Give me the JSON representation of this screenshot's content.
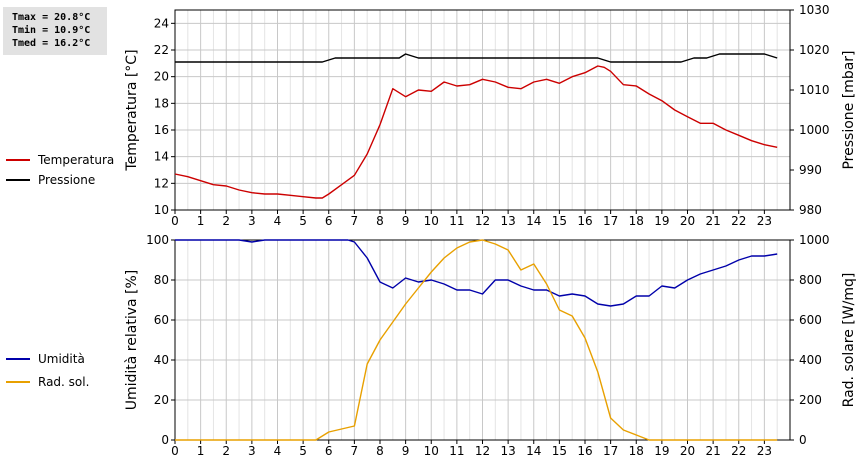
{
  "stats": {
    "tmax": "Tmax = 20.8°C",
    "tmin": "Tmin = 10.9°C",
    "tmed": "Tmed = 16.2°C"
  },
  "colors": {
    "temperature": "#cc0000",
    "pressure": "#000000",
    "humidity": "#0000aa",
    "radiation": "#e8a000",
    "grid": "#c8c8c8"
  },
  "chart_data": [
    {
      "type": "line",
      "xlim": [
        0,
        24
      ],
      "x_ticks": [
        "0",
        "1",
        "2",
        "3",
        "4",
        "5",
        "6",
        "7",
        "8",
        "9",
        "10",
        "11",
        "12",
        "13",
        "14",
        "15",
        "16",
        "17",
        "18",
        "19",
        "20",
        "21",
        "22",
        "23"
      ],
      "grid": true,
      "legend": "left",
      "left_axis": {
        "label": "Temperatura [°C]",
        "lim": [
          10,
          25
        ],
        "ticks": [
          "10",
          "12",
          "14",
          "16",
          "18",
          "20",
          "22",
          "24"
        ]
      },
      "right_axis": {
        "label": "Pressione [mbar]",
        "lim": [
          980,
          1030
        ],
        "ticks": [
          "980",
          "990",
          "1000",
          "1010",
          "1020",
          "1030"
        ]
      },
      "series": [
        {
          "name": "Temperatura",
          "axis": "left",
          "x": [
            0,
            0.5,
            1,
            1.5,
            2,
            2.5,
            3,
            3.5,
            4,
            4.5,
            5,
            5.5,
            5.75,
            6,
            6.5,
            7,
            7.5,
            8,
            8.5,
            9,
            9.5,
            10,
            10.5,
            11,
            11.5,
            12,
            12.5,
            13,
            13.5,
            14,
            14.5,
            15,
            15.5,
            16,
            16.5,
            16.75,
            17,
            17.5,
            18,
            18.5,
            19,
            19.5,
            20,
            20.5,
            21,
            21.5,
            22,
            22.5,
            23,
            23.5
          ],
          "values": [
            12.7,
            12.5,
            12.2,
            11.9,
            11.8,
            11.5,
            11.3,
            11.2,
            11.2,
            11.1,
            11.0,
            10.9,
            10.9,
            11.2,
            11.9,
            12.6,
            14.2,
            16.4,
            19.1,
            18.5,
            19.0,
            18.9,
            19.6,
            19.3,
            19.4,
            19.8,
            19.6,
            19.2,
            19.1,
            19.6,
            19.8,
            19.5,
            20.0,
            20.3,
            20.8,
            20.7,
            20.4,
            19.4,
            19.3,
            18.7,
            18.2,
            17.5,
            17.0,
            16.5,
            16.5,
            16.0,
            15.6,
            15.2,
            14.9,
            14.7
          ]
        },
        {
          "name": "Pressione",
          "axis": "right",
          "x": [
            0,
            5.75,
            6.25,
            8.75,
            9,
            9.5,
            16.5,
            17,
            19.25,
            19.75,
            20.25,
            20.75,
            21.25,
            22.25,
            23,
            23.5
          ],
          "values": [
            1017,
            1017,
            1018,
            1018,
            1019,
            1018,
            1018,
            1017,
            1017,
            1017,
            1018,
            1018,
            1019,
            1019,
            1019,
            1018
          ]
        }
      ]
    },
    {
      "type": "line",
      "xlim": [
        0,
        24
      ],
      "x_ticks": [
        "0",
        "1",
        "2",
        "3",
        "4",
        "5",
        "6",
        "7",
        "8",
        "9",
        "10",
        "11",
        "12",
        "13",
        "14",
        "15",
        "16",
        "17",
        "18",
        "19",
        "20",
        "21",
        "22",
        "23"
      ],
      "grid": true,
      "legend": "left",
      "left_axis": {
        "label": "Umidità relativa [%]",
        "lim": [
          0,
          100
        ],
        "ticks": [
          "0",
          "20",
          "40",
          "60",
          "80",
          "100"
        ]
      },
      "right_axis": {
        "label": "Rad. solare [W/mq]",
        "lim": [
          0,
          1000
        ],
        "ticks": [
          "0",
          "200",
          "400",
          "600",
          "800",
          "1000"
        ]
      },
      "series": [
        {
          "name": "Umidità",
          "axis": "left",
          "x": [
            0,
            2.5,
            3,
            3.5,
            4,
            4.5,
            5,
            5.5,
            6,
            6.5,
            6.75,
            7,
            7.5,
            8,
            8.5,
            9,
            9.5,
            10,
            10.5,
            11,
            11.5,
            12,
            12.5,
            13,
            13.5,
            14,
            14.5,
            15,
            15.5,
            16,
            16.5,
            17,
            17.5,
            18,
            18.5,
            19,
            19.5,
            20,
            20.5,
            21,
            21.5,
            22,
            22.5,
            23,
            23.5
          ],
          "values": [
            100,
            100,
            99,
            100,
            100,
            100,
            100,
            100,
            100,
            100,
            100,
            99,
            91,
            79,
            76,
            81,
            79,
            80,
            78,
            75,
            75,
            73,
            80,
            80,
            77,
            75,
            75,
            72,
            73,
            72,
            68,
            67,
            68,
            72,
            72,
            77,
            76,
            80,
            83,
            85,
            87,
            90,
            92,
            92,
            93
          ]
        },
        {
          "name": "Rad. sol.",
          "axis": "right",
          "x": [
            0,
            5.5,
            6,
            6.5,
            7,
            7.5,
            8,
            8.5,
            9,
            9.5,
            10,
            10.5,
            11,
            11.5,
            12,
            12.5,
            13,
            13.5,
            14,
            14.5,
            15,
            15.5,
            16,
            16.5,
            17,
            17.5,
            18,
            18.5,
            19,
            19.5,
            20,
            20.5,
            21,
            21.5,
            22,
            22.5,
            23,
            23.5
          ],
          "values": [
            0,
            0,
            40,
            55,
            70,
            380,
            500,
            590,
            680,
            760,
            840,
            910,
            960,
            990,
            1000,
            980,
            950,
            850,
            880,
            780,
            650,
            620,
            510,
            340,
            110,
            50,
            25,
            0,
            0,
            0,
            0,
            0,
            0,
            0,
            0,
            0,
            0,
            0
          ]
        }
      ]
    }
  ]
}
